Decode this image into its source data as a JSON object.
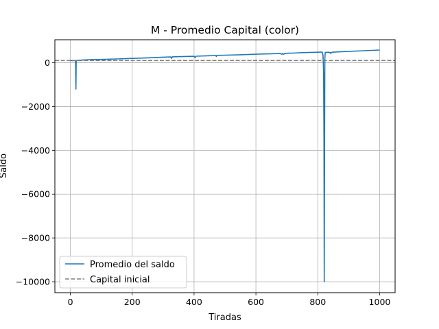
{
  "chart_data": {
    "type": "line",
    "title": "M - Promedio Capital (color)",
    "xlabel": "Tiradas",
    "ylabel": "Saldo",
    "xlim": [
      -50,
      1050
    ],
    "ylim": [
      -10500,
      1050
    ],
    "xticks": [
      0,
      200,
      400,
      600,
      800,
      1000
    ],
    "xtick_labels": [
      "0",
      "200",
      "400",
      "600",
      "800",
      "1000"
    ],
    "yticks": [
      0,
      -2000,
      -4000,
      -6000,
      -8000,
      -10000
    ],
    "ytick_labels": [
      "0",
      "−2000",
      "−4000",
      "−6000",
      "−8000",
      "−10000"
    ],
    "grid": true,
    "legend_position": "lower-left",
    "series": [
      {
        "name": "Promedio del saldo",
        "color": "#1f77b4",
        "style": "solid",
        "x": [
          1,
          12,
          15,
          17,
          18,
          19,
          20,
          22,
          40,
          60,
          85,
          88,
          90,
          120,
          150,
          200,
          250,
          300,
          325,
          327,
          330,
          400,
          404,
          406,
          450,
          470,
          472,
          474,
          500,
          550,
          600,
          650,
          680,
          684,
          686,
          690,
          694,
          698,
          702,
          720,
          750,
          800,
          814,
          817,
          819,
          820,
          821,
          822,
          823,
          824,
          828,
          835,
          840,
          842,
          844,
          850,
          900,
          950,
          1000
        ],
        "y": [
          100,
          105,
          100,
          80,
          -1200,
          80,
          105,
          110,
          125,
          140,
          150,
          120,
          150,
          160,
          175,
          200,
          225,
          255,
          265,
          200,
          270,
          295,
          230,
          300,
          320,
          330,
          290,
          335,
          345,
          365,
          390,
          410,
          420,
          380,
          425,
          390,
          430,
          420,
          435,
          440,
          460,
          480,
          490,
          350,
          -500,
          -3500,
          -10000,
          -4000,
          200,
          470,
          475,
          480,
          460,
          420,
          470,
          485,
          520,
          550,
          580
        ]
      },
      {
        "name": "Capital inicial",
        "color": "#808080",
        "style": "dashed",
        "y_constant": 100
      }
    ]
  }
}
